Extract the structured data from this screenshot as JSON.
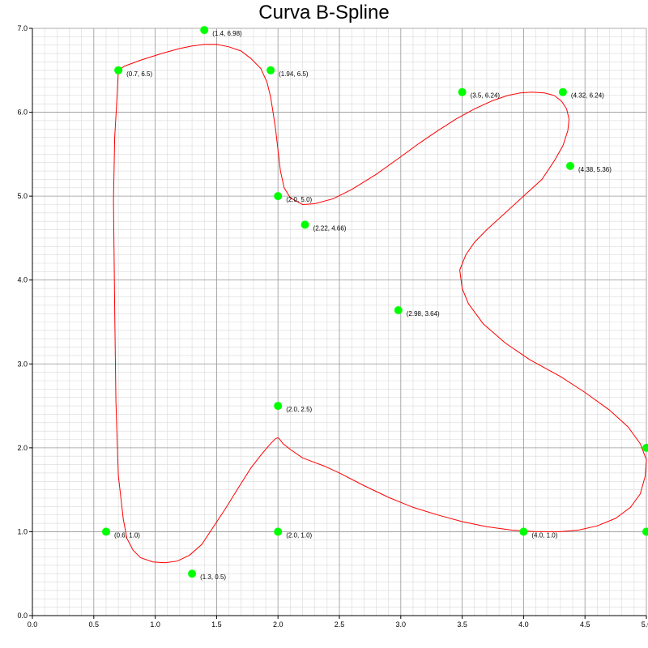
{
  "chart_data": {
    "type": "scatter",
    "title": "Curva B-Spline",
    "xlabel": "",
    "ylabel": "",
    "xlim": [
      0.0,
      5.0
    ],
    "ylim": [
      0.0,
      7.0
    ],
    "x_ticks": [
      "0.0",
      "0.5",
      "1.0",
      "1.5",
      "2.0",
      "2.5",
      "3.0",
      "3.5",
      "4.0",
      "4.5",
      "5.0"
    ],
    "y_ticks": [
      "0.0",
      "1.0",
      "2.0",
      "3.0",
      "4.0",
      "5.0",
      "6.0",
      "7.0"
    ],
    "grid": true,
    "minor_grid": true,
    "control_points": [
      {
        "x": 0.7,
        "y": 6.5,
        "label": "(0.7, 6.5)"
      },
      {
        "x": 1.4,
        "y": 6.98,
        "label": "(1.4, 6.98)"
      },
      {
        "x": 1.94,
        "y": 6.5,
        "label": "(1.94, 6.5)"
      },
      {
        "x": 2.0,
        "y": 5.0,
        "label": "(2.0, 5.0)"
      },
      {
        "x": 2.22,
        "y": 4.66,
        "label": "(2.22, 4.66)"
      },
      {
        "x": 3.5,
        "y": 6.24,
        "label": "(3.5, 6.24)"
      },
      {
        "x": 4.32,
        "y": 6.24,
        "label": "(4.32, 6.24)"
      },
      {
        "x": 4.38,
        "y": 5.36,
        "label": "(4.38, 5.36)"
      },
      {
        "x": 2.98,
        "y": 3.64,
        "label": "(2.98, 3.64)"
      },
      {
        "x": 5.0,
        "y": 2.0,
        "label": ""
      },
      {
        "x": 5.0,
        "y": 1.0,
        "label": ""
      },
      {
        "x": 4.0,
        "y": 1.0,
        "label": "(4.0, 1.0)"
      },
      {
        "x": 2.0,
        "y": 2.5,
        "label": "(2.0, 2.5)"
      },
      {
        "x": 2.0,
        "y": 1.0,
        "label": "(2.0, 1.0)"
      },
      {
        "x": 1.3,
        "y": 0.5,
        "label": "(1.3, 0.5)"
      },
      {
        "x": 0.6,
        "y": 1.0,
        "label": "(0.6, 1.0)"
      }
    ],
    "curve": {
      "x": [
        0.7,
        0.75,
        0.88,
        1.05,
        1.2,
        1.3,
        1.4,
        1.5,
        1.6,
        1.7,
        1.78,
        1.86,
        1.91,
        1.94,
        1.96,
        1.98,
        2.0,
        2.02,
        2.05,
        2.1,
        2.2,
        2.3,
        2.45,
        2.6,
        2.8,
        3.0,
        3.15,
        3.3,
        3.45,
        3.6,
        3.75,
        3.87,
        3.97,
        4.07,
        4.17,
        4.25,
        4.31,
        4.35,
        4.37,
        4.36,
        4.32,
        4.25,
        4.15,
        4.0,
        3.85,
        3.7,
        3.6,
        3.53,
        3.48,
        3.5,
        3.55,
        3.67,
        3.85,
        4.05,
        4.3,
        4.5,
        4.7,
        4.85,
        4.95,
        5.0,
        4.99,
        4.95,
        4.87,
        4.75,
        4.6,
        4.45,
        4.3,
        4.1,
        3.9,
        3.7,
        3.5,
        3.3,
        3.1,
        2.9,
        2.7,
        2.5,
        2.38,
        2.2,
        2.1,
        2.04,
        2.01,
        2.0,
        1.98,
        1.94,
        1.87,
        1.78,
        1.68,
        1.57,
        1.47,
        1.38,
        1.28,
        1.18,
        1.08,
        0.98,
        0.88,
        0.82,
        0.77,
        0.74,
        0.7,
        0.68,
        0.67,
        0.66,
        0.67,
        0.69,
        0.7
      ],
      "y": [
        6.5,
        6.55,
        6.62,
        6.7,
        6.76,
        6.79,
        6.81,
        6.81,
        6.78,
        6.73,
        6.64,
        6.52,
        6.36,
        6.18,
        6.0,
        5.8,
        5.55,
        5.3,
        5.1,
        4.98,
        4.9,
        4.91,
        4.97,
        5.08,
        5.26,
        5.47,
        5.63,
        5.78,
        5.92,
        6.04,
        6.14,
        6.2,
        6.23,
        6.24,
        6.23,
        6.2,
        6.13,
        6.04,
        5.92,
        5.78,
        5.6,
        5.42,
        5.2,
        5.0,
        4.8,
        4.6,
        4.45,
        4.3,
        4.12,
        3.9,
        3.72,
        3.48,
        3.25,
        3.05,
        2.85,
        2.66,
        2.45,
        2.25,
        2.05,
        1.86,
        1.66,
        1.45,
        1.29,
        1.16,
        1.07,
        1.02,
        1.0,
        1.0,
        1.02,
        1.06,
        1.12,
        1.2,
        1.29,
        1.41,
        1.55,
        1.7,
        1.78,
        1.88,
        1.98,
        2.05,
        2.11,
        2.12,
        2.11,
        2.05,
        1.93,
        1.76,
        1.53,
        1.27,
        1.05,
        0.85,
        0.72,
        0.65,
        0.63,
        0.64,
        0.69,
        0.78,
        0.92,
        1.15,
        1.67,
        2.55,
        3.65,
        4.95,
        5.7,
        6.2,
        6.5
      ]
    },
    "colors": {
      "curve": "#ff0000",
      "points": "#00ff00",
      "grid_major": "#999999",
      "grid_minor": "#d9d9d9"
    }
  }
}
